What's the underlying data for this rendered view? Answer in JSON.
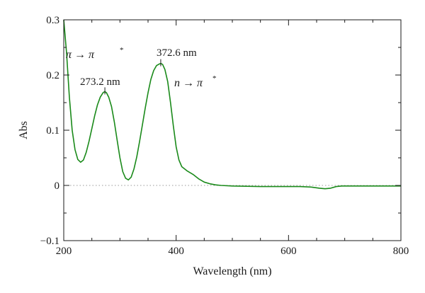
{
  "chart_data": {
    "type": "line",
    "title": "",
    "xlabel": "Wavelength (nm)",
    "ylabel": "Abs",
    "xlim": [
      200,
      800
    ],
    "ylim": [
      -0.1,
      0.3
    ],
    "x_ticks": [
      200,
      400,
      600,
      800
    ],
    "x_tick_labels": [
      "200",
      "400",
      "600",
      "800"
    ],
    "y_ticks": [
      -0.1,
      0,
      0.1,
      0.2,
      0.3
    ],
    "y_tick_labels": [
      "−0.1",
      "0",
      "0.1",
      "0.2",
      "0.3"
    ],
    "grid": false,
    "legend": "none",
    "baseline": {
      "y": 0,
      "style": "dotted",
      "color": "#999999"
    },
    "series": [
      {
        "color": "#1a8a1a",
        "points": [
          [
            200,
            0.3
          ],
          [
            205,
            0.24
          ],
          [
            210,
            0.16
          ],
          [
            215,
            0.1
          ],
          [
            220,
            0.065
          ],
          [
            225,
            0.047
          ],
          [
            230,
            0.042
          ],
          [
            235,
            0.046
          ],
          [
            240,
            0.06
          ],
          [
            245,
            0.08
          ],
          [
            250,
            0.103
          ],
          [
            255,
            0.126
          ],
          [
            260,
            0.146
          ],
          [
            265,
            0.16
          ],
          [
            270,
            0.168
          ],
          [
            273,
            0.17
          ],
          [
            276,
            0.168
          ],
          [
            280,
            0.16
          ],
          [
            285,
            0.143
          ],
          [
            290,
            0.115
          ],
          [
            295,
            0.082
          ],
          [
            300,
            0.05
          ],
          [
            305,
            0.025
          ],
          [
            310,
            0.013
          ],
          [
            315,
            0.01
          ],
          [
            320,
            0.015
          ],
          [
            325,
            0.03
          ],
          [
            330,
            0.052
          ],
          [
            335,
            0.08
          ],
          [
            340,
            0.11
          ],
          [
            345,
            0.14
          ],
          [
            350,
            0.168
          ],
          [
            355,
            0.192
          ],
          [
            360,
            0.208
          ],
          [
            365,
            0.217
          ],
          [
            370,
            0.22
          ],
          [
            373,
            0.221
          ],
          [
            376,
            0.219
          ],
          [
            380,
            0.21
          ],
          [
            385,
            0.188
          ],
          [
            390,
            0.15
          ],
          [
            395,
            0.108
          ],
          [
            400,
            0.07
          ],
          [
            405,
            0.046
          ],
          [
            410,
            0.034
          ],
          [
            420,
            0.026
          ],
          [
            430,
            0.02
          ],
          [
            440,
            0.012
          ],
          [
            450,
            0.006
          ],
          [
            460,
            0.003
          ],
          [
            470,
            0.001
          ],
          [
            480,
            0.0
          ],
          [
            500,
            -0.001
          ],
          [
            550,
            -0.002
          ],
          [
            600,
            -0.002
          ],
          [
            620,
            -0.002
          ],
          [
            640,
            -0.003
          ],
          [
            655,
            -0.005
          ],
          [
            665,
            -0.006
          ],
          [
            675,
            -0.005
          ],
          [
            685,
            -0.002
          ],
          [
            695,
            -0.001
          ],
          [
            710,
            -0.001
          ],
          [
            750,
            -0.001
          ],
          [
            800,
            -0.001
          ]
        ]
      }
    ],
    "annotations": [
      {
        "id": "peak1",
        "x": 273.2,
        "y": 0.17,
        "label": "273.2 nm",
        "transition_left": "π → π",
        "transition_sup": "*"
      },
      {
        "id": "peak2",
        "x": 372.6,
        "y": 0.221,
        "label": "372.6 nm",
        "transition_left": "n → π",
        "transition_sup": "*"
      }
    ]
  }
}
